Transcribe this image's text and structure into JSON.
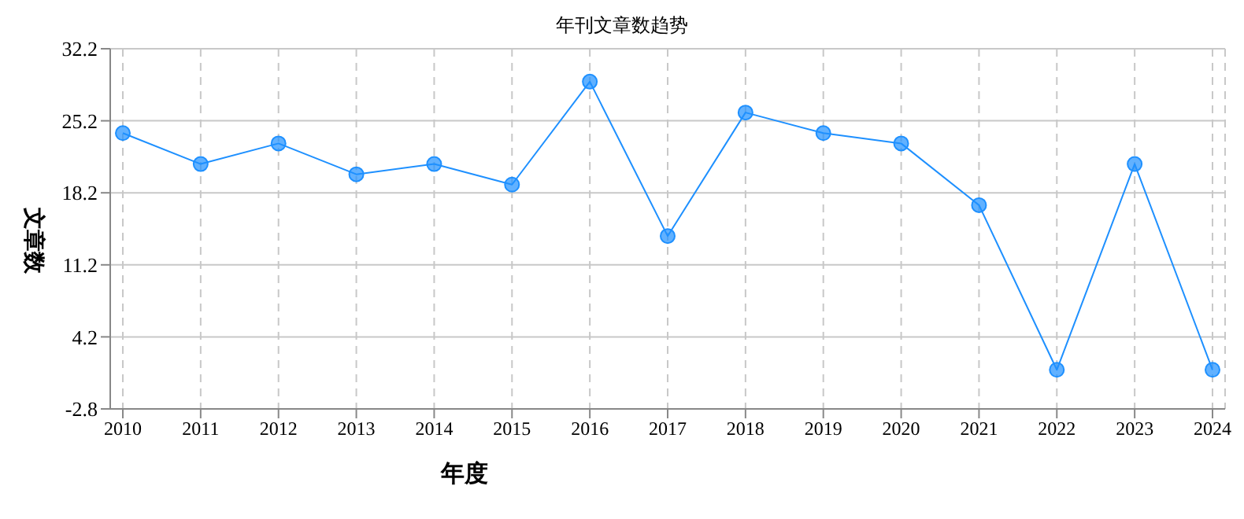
{
  "chart_data": {
    "type": "line",
    "title": "年刊文章数趋势",
    "xlabel": "年度",
    "ylabel": "文章数",
    "categories": [
      "2010",
      "2011",
      "2012",
      "2013",
      "2014",
      "2015",
      "2016",
      "2017",
      "2018",
      "2019",
      "2020",
      "2021",
      "2022",
      "2023",
      "2024"
    ],
    "series": [
      {
        "color": "#1e90ff",
        "values": [
          24,
          21,
          23,
          20,
          21,
          19,
          29,
          14,
          26,
          24,
          23,
          17,
          1,
          21,
          1
        ]
      }
    ],
    "ylim": [
      -2.8,
      32.2
    ],
    "yticks": [
      -2.8,
      4.2,
      11.2,
      18.2,
      25.2,
      32.2
    ],
    "grid": true,
    "legend": false,
    "marker": "circle",
    "line_style": "solid"
  }
}
